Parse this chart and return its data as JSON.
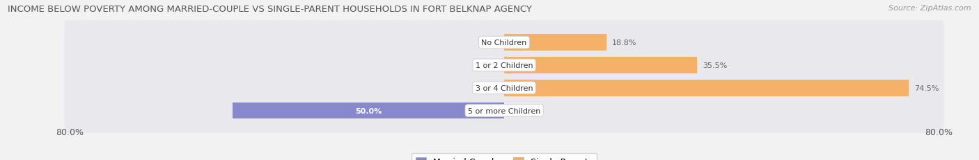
{
  "title": "INCOME BELOW POVERTY AMONG MARRIED-COUPLE VS SINGLE-PARENT HOUSEHOLDS IN FORT BELKNAP AGENCY",
  "source": "Source: ZipAtlas.com",
  "categories": [
    "No Children",
    "1 or 2 Children",
    "3 or 4 Children",
    "5 or more Children"
  ],
  "married_values": [
    0.0,
    0.0,
    0.0,
    50.0
  ],
  "single_values": [
    18.8,
    35.5,
    74.5,
    0.0
  ],
  "married_color": "#8888cc",
  "single_color": "#f5b06a",
  "xlim_left": -80.0,
  "xlim_right": 80.0,
  "background_color": "#f2f2f2",
  "row_bg_color": "#e8e8ed",
  "row_bg_color_alt": "#ebebf0",
  "title_fontsize": 9.5,
  "source_fontsize": 8,
  "label_fontsize": 8,
  "legend_fontsize": 9,
  "bar_height": 0.72
}
